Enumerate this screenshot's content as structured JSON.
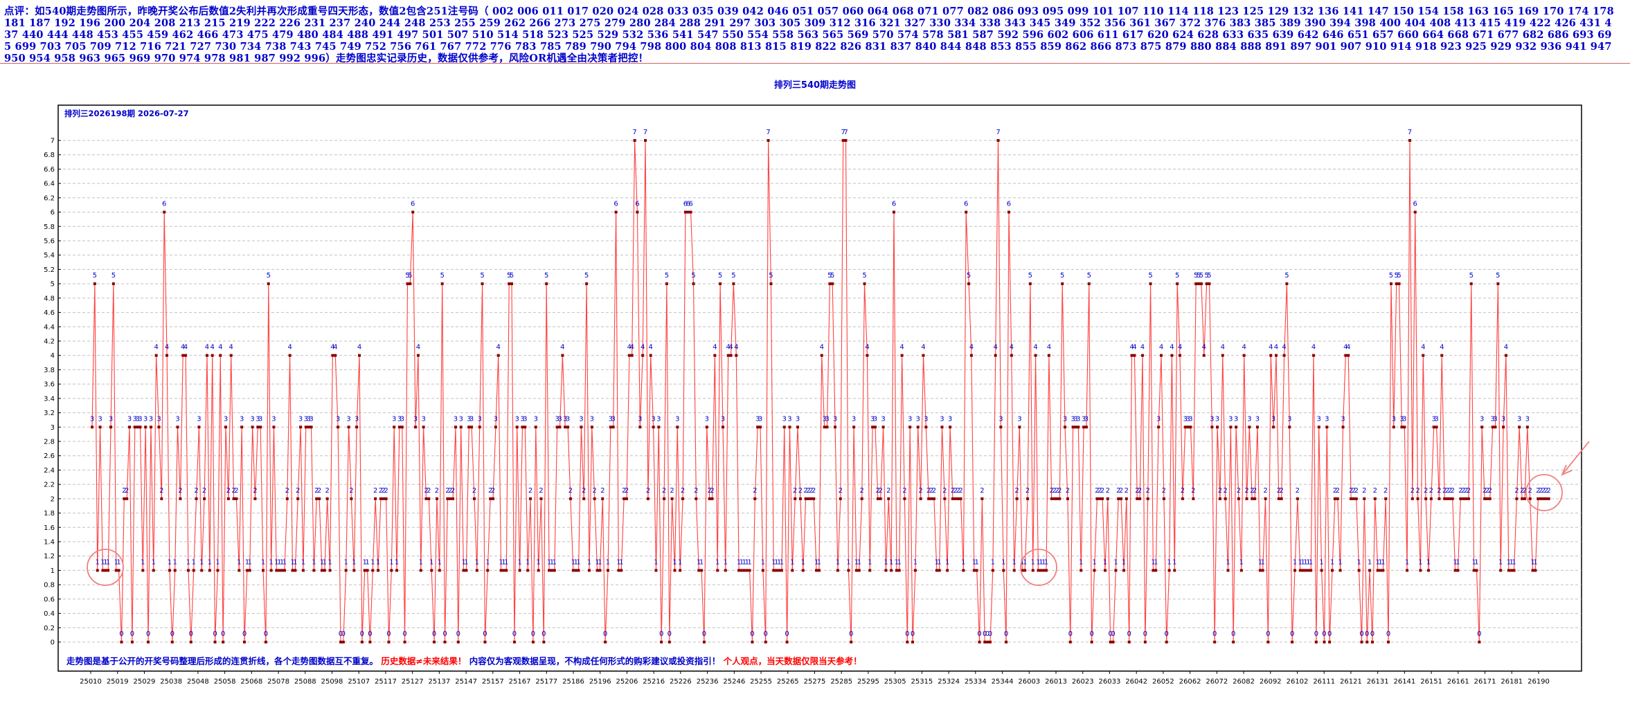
{
  "comment": "点评：如540期走势图所示，昨晚开奖公布后数值2失利并再次形成重号四天形态，数值2包含251注号码（ 002 006 011 017 020 024 028 033 035 039 042 046 051 057 060 064 068 071 077 082 086 093 095 099 101 107 110 114 118 123 125 129 132 136 141 147 150 154 158 163 165 169 170 174 178 181 187 192 196 200 204 208 213 215 219 222 226 231 237 240 244 248 253 255 259 262 266 273 275 279 280 284 288 291 297 303 305 309 312 316 321 327 330 334 338 343 345 349 352 356 361 367 372 376 383 385 389 390 394 398 400 404 408 413 415 419 422 426 431 437 440 444 448 453 455 459 462 466 473 475 479 480 484 488 491 497 501 507 510 514 518 523 525 529 532 536 541 547 550 554 558 563 565 569 570 574 578 581 587 592 596 602 606 611 617 620 624 628 633 635 639 642 646 651 657 660 664 668 671 677 682 686 693 695 699 703 705 709 712 716 721 727 730 734 738 743 745 749 752 756 761 767 772 776 783 785 789 790 794 798 800 804 808 813 815 819 822 826 831 837 840 844 848 853 855 859 862 866 873 875 879 880 884 888 891 897 901 907 910 914 918 923 925 929 932 936 941 947 950 954 958 963 965 969 970 974 978 981 987 992 996）走势图忠实记录历史，数据仅供参考，风险OR机遇全由决策者把控！",
  "chart_title": "排列三540期走势图",
  "chart_subtitle": "排列三2026198期  2026-07-27",
  "footer_blue": "走势图是基于公开的开奖号码整理后形成的连贯折线，各个走势图数据互不重复。",
  "footer_red": "历史数据≠未来结果！",
  "footer_blue2": "内容仅为客观数据呈现，不构成任何形式的购彩建议或投资指引！",
  "footer_red2": "个人观点，当天数据仅限当天参考！",
  "colors": {
    "line": "#ff4040",
    "point": "#8b0000",
    "label": "#0000cc",
    "axis": "#000000",
    "grid": "#c0c0c0",
    "circle": "#f08080",
    "arrow": "#f08080"
  },
  "annotations": [
    "circle-start",
    "circle-middle",
    "circle-end",
    "arrow-latest"
  ],
  "chart_data": {
    "type": "line",
    "title": "排列三540期走势图",
    "ylim": [
      0,
      7
    ],
    "yticks": [
      "0",
      "0.2",
      "0.4",
      "0.6",
      "0.8",
      "1",
      "1.2",
      "1.4",
      "1.6",
      "1.8",
      "2",
      "2.2",
      "2.4",
      "2.6",
      "2.8",
      "3",
      "3.2",
      "3.4",
      "3.6",
      "3.8",
      "4",
      "4.2",
      "4.4",
      "4.6",
      "4.8",
      "5",
      "5.2",
      "5.4",
      "5.6",
      "5.8",
      "6",
      "6.2",
      "6.4",
      "6.6",
      "6.8",
      "7"
    ],
    "x_tick_labels": [
      "25010",
      "25019",
      "25029",
      "25038",
      "25048",
      "25058",
      "25068",
      "25078",
      "25088",
      "25098",
      "25107",
      "25117",
      "25127",
      "25137",
      "25147",
      "25157",
      "25167",
      "25177",
      "25186",
      "25196",
      "25206",
      "25216",
      "25226",
      "25236",
      "25246",
      "25255",
      "25265",
      "25275",
      "25285",
      "25295",
      "25305",
      "25315",
      "25324",
      "25334",
      "25344",
      "26003",
      "26013",
      "26023",
      "26033",
      "26042",
      "26052",
      "26062",
      "26072",
      "26082",
      "26092",
      "26102",
      "26111",
      "26121",
      "26131",
      "26141",
      "26151",
      "26161",
      "26171",
      "26181",
      "26190"
    ],
    "grid": true,
    "values": [
      3,
      5,
      1,
      3,
      1,
      1,
      1,
      3,
      5,
      1,
      1,
      0,
      2,
      2,
      3,
      0,
      3,
      3,
      3,
      1,
      3,
      0,
      3,
      1,
      4,
      3,
      2,
      6,
      4,
      1,
      0,
      1,
      3,
      2,
      4,
      4,
      1,
      0,
      1,
      2,
      3,
      1,
      2,
      4,
      1,
      4,
      0,
      1,
      4,
      0,
      3,
      2,
      4,
      2,
      2,
      1,
      3,
      0,
      1,
      1,
      3,
      2,
      3,
      3,
      1,
      0,
      5,
      1,
      3,
      1,
      1,
      1,
      1,
      2,
      4,
      1,
      1,
      2,
      3,
      1,
      3,
      3,
      3,
      1,
      2,
      2,
      1,
      1,
      2,
      1,
      4,
      4,
      3,
      0,
      0,
      1,
      3,
      2,
      1,
      3,
      4,
      0,
      1,
      1,
      0,
      1,
      2,
      1,
      2,
      2,
      2,
      0,
      1,
      3,
      1,
      3,
      3,
      0,
      5,
      5,
      6,
      3,
      4,
      1,
      3,
      2,
      2,
      1,
      0,
      2,
      1,
      5,
      0,
      2,
      2,
      2,
      3,
      0,
      3,
      1,
      1,
      3,
      3,
      2,
      1,
      3,
      5,
      0,
      1,
      2,
      2,
      3,
      4,
      1,
      1,
      1,
      5,
      5,
      0,
      3,
      1,
      3,
      3,
      1,
      2,
      0,
      3,
      1,
      2,
      0,
      5,
      1,
      1,
      1,
      3,
      3,
      4,
      3,
      3,
      2,
      1,
      1,
      1,
      3,
      2,
      5,
      1,
      3,
      2,
      1,
      1,
      2,
      0,
      1,
      3,
      3,
      6,
      1,
      1,
      2,
      2,
      4,
      4,
      7,
      6,
      3,
      4,
      7,
      2,
      4,
      3,
      1,
      3,
      0,
      2,
      5,
      0,
      2,
      1,
      3,
      1,
      2,
      6,
      6,
      6,
      5,
      2,
      1,
      1,
      0,
      3,
      2,
      2,
      4,
      1,
      5,
      3,
      1,
      4,
      4,
      5,
      4,
      1,
      1,
      1,
      1,
      1,
      0,
      2,
      3,
      3,
      1,
      0,
      7,
      5,
      1,
      1,
      1,
      1,
      3,
      0,
      3,
      1,
      2,
      3,
      2,
      1,
      2,
      2,
      2,
      2,
      1,
      1,
      4,
      3,
      3,
      5,
      5,
      3,
      1,
      2,
      7,
      7,
      1,
      0,
      3,
      1,
      1,
      2,
      5,
      4,
      1,
      3,
      3,
      2,
      2,
      3,
      1,
      2,
      1,
      6,
      1,
      1,
      4,
      2,
      0,
      3,
      0,
      1,
      3,
      2,
      4,
      3,
      2,
      2,
      2,
      1,
      1,
      3,
      2,
      1,
      3,
      2,
      2,
      2,
      2,
      1,
      6,
      5,
      4,
      1,
      1,
      0,
      2,
      0,
      0,
      0,
      1,
      4,
      7,
      3,
      1,
      0,
      6,
      4,
      1,
      2,
      3,
      1,
      1,
      2,
      5,
      1,
      4,
      1,
      1,
      1,
      1,
      4,
      2,
      2,
      2,
      2,
      5,
      3,
      2,
      0,
      3,
      3,
      3,
      1,
      3,
      3,
      5,
      0,
      1,
      2,
      2,
      2,
      1,
      2,
      0,
      0,
      1,
      2,
      2,
      1,
      2,
      0,
      4,
      4,
      2,
      2,
      4,
      0,
      2,
      5,
      1,
      1,
      3,
      4,
      2,
      0,
      1,
      4,
      1,
      5,
      4,
      2,
      3,
      3,
      3,
      2,
      5,
      5,
      5,
      4,
      5,
      5,
      3,
      0,
      3,
      2,
      4,
      2,
      1,
      3,
      0,
      3,
      2,
      1,
      4,
      2,
      3,
      2,
      2,
      3,
      1,
      1,
      2,
      0,
      4,
      3,
      4,
      2,
      2,
      4,
      5,
      3,
      0,
      1,
      2,
      1,
      1,
      1,
      1,
      1,
      4,
      0,
      3,
      1,
      0,
      3,
      0,
      1,
      2,
      2,
      1,
      3,
      4,
      4,
      2,
      2,
      2,
      1,
      0,
      2,
      0,
      1,
      0,
      2,
      1,
      1,
      1,
      2,
      0,
      5,
      3,
      5,
      5,
      3,
      3,
      1,
      7,
      2,
      6,
      2,
      1,
      4,
      2,
      1,
      2,
      3,
      3,
      2,
      4,
      2,
      2,
      2,
      2,
      1,
      1,
      2,
      2,
      2,
      2,
      5,
      1,
      1,
      0,
      3,
      2,
      2,
      2,
      3,
      3,
      5,
      1,
      3,
      4,
      1,
      1,
      1,
      2,
      3,
      2,
      2,
      3,
      2,
      1,
      1,
      2,
      2,
      2,
      2,
      2
    ]
  }
}
